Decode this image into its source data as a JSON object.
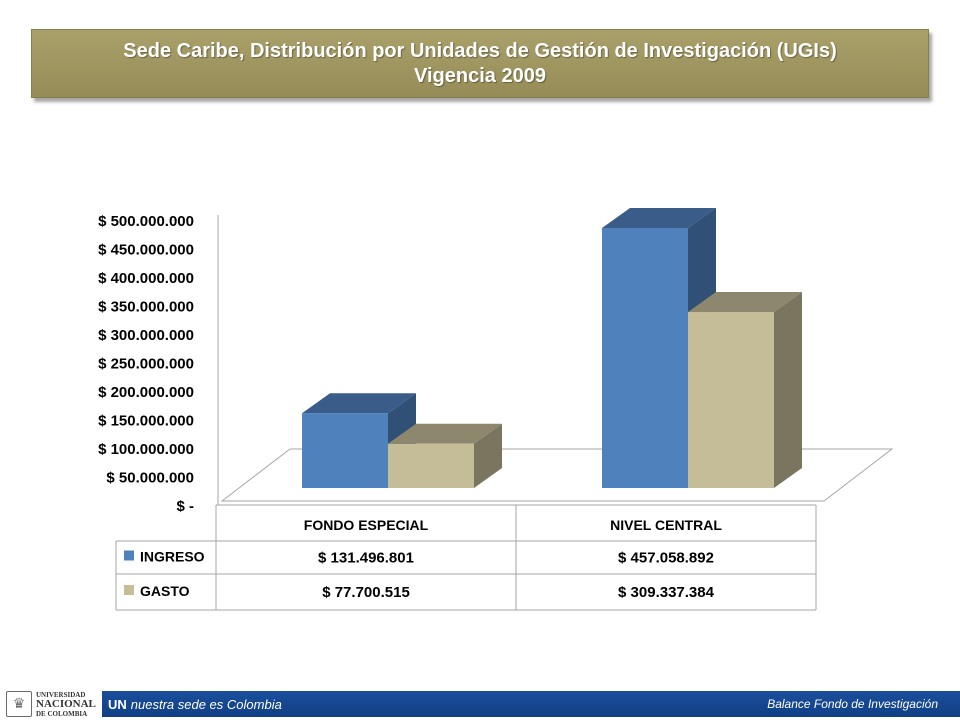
{
  "header": {
    "title_line1": "Sede Caribe, Distribución por Unidades de Gestión de Investigación (UGIs)",
    "title_line2": "Vigencia 2009"
  },
  "chart_data": {
    "type": "bar",
    "categories": [
      "FONDO ESPECIAL",
      "NIVEL CENTRAL"
    ],
    "series": [
      {
        "name": "INGRESO",
        "values": [
          131496801,
          457058892
        ],
        "color": "#4f81bd"
      },
      {
        "name": "GASTO",
        "values": [
          77700515,
          309337384
        ],
        "color": "#c4bd97"
      }
    ],
    "ylim": [
      0,
      500000000
    ],
    "yticks": [
      "$ 500.000.000",
      "$ 450.000.000",
      "$ 400.000.000",
      "$ 350.000.000",
      "$ 300.000.000",
      "$ 250.000.000",
      "$ 200.000.000",
      "$ 150.000.000",
      "$ 100.000.000",
      "$ 50.000.000",
      "$ -"
    ],
    "table": [
      {
        "series": "INGRESO",
        "cells": [
          "$ 131.496.801",
          "$ 457.058.892"
        ]
      },
      {
        "series": "GASTO",
        "cells": [
          "$ 77.700.515",
          "$ 309.337.384"
        ]
      }
    ],
    "grid": false,
    "style": "3d-clustered-column"
  },
  "footer": {
    "logo_line1": "UNIVERSIDAD",
    "logo_line2": "NACIONAL",
    "logo_line3": "DE COLOMBIA",
    "brand": "UN",
    "tagline": "nuestra sede es Colombia",
    "right_text": "Balance Fondo de Investigación"
  }
}
